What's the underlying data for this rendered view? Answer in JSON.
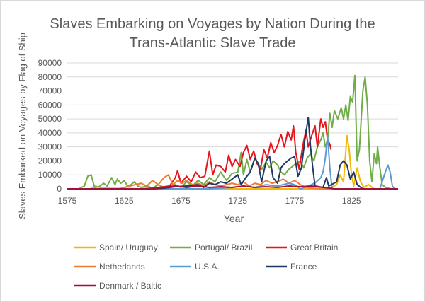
{
  "chart_data": {
    "type": "line",
    "title_line1": "Slaves Embarking on Voyages by Nation During the",
    "title_line2": "Trans-Atlantic Slave Trade",
    "xlabel": "Year",
    "ylabel": "Slaves Embarked on Voyages by Flag of Ship",
    "xlim": [
      1575,
      1866
    ],
    "ylim": [
      0,
      90000
    ],
    "x_ticks": [
      1575,
      1625,
      1675,
      1725,
      1775,
      1825
    ],
    "y_ticks": [
      0,
      10000,
      20000,
      30000,
      40000,
      50000,
      60000,
      70000,
      80000,
      90000
    ],
    "grid": "horizontal",
    "legend_position": "bottom",
    "series": [
      {
        "name": "Spain/ Uruguay",
        "color": "#F2B705",
        "points": [
          [
            1575,
            0
          ],
          [
            1595,
            0
          ],
          [
            1600,
            2000
          ],
          [
            1605,
            500
          ],
          [
            1640,
            0
          ],
          [
            1700,
            0
          ],
          [
            1760,
            0
          ],
          [
            1790,
            0
          ],
          [
            1805,
            0
          ],
          [
            1812,
            3000
          ],
          [
            1815,
            10000
          ],
          [
            1818,
            5000
          ],
          [
            1821,
            38000
          ],
          [
            1823,
            28000
          ],
          [
            1825,
            10000
          ],
          [
            1827,
            2000
          ],
          [
            1830,
            15000
          ],
          [
            1833,
            5000
          ],
          [
            1836,
            1000
          ],
          [
            1840,
            3000
          ],
          [
            1845,
            0
          ],
          [
            1860,
            0
          ],
          [
            1866,
            0
          ]
        ]
      },
      {
        "name": "Portugal/ Brazil",
        "color": "#70AD47",
        "points": [
          [
            1575,
            0
          ],
          [
            1585,
            0
          ],
          [
            1590,
            2000
          ],
          [
            1593,
            9000
          ],
          [
            1596,
            10000
          ],
          [
            1599,
            1000
          ],
          [
            1603,
            1500
          ],
          [
            1607,
            4000
          ],
          [
            1610,
            2000
          ],
          [
            1614,
            8000
          ],
          [
            1617,
            3000
          ],
          [
            1619,
            7000
          ],
          [
            1622,
            4000
          ],
          [
            1625,
            6000
          ],
          [
            1628,
            2000
          ],
          [
            1631,
            3000
          ],
          [
            1634,
            5000
          ],
          [
            1637,
            2000
          ],
          [
            1640,
            1000
          ],
          [
            1645,
            2000
          ],
          [
            1650,
            500
          ],
          [
            1655,
            3000
          ],
          [
            1660,
            1000
          ],
          [
            1665,
            2000
          ],
          [
            1670,
            3000
          ],
          [
            1675,
            1000
          ],
          [
            1680,
            5000
          ],
          [
            1685,
            2000
          ],
          [
            1690,
            6000
          ],
          [
            1695,
            3000
          ],
          [
            1700,
            8000
          ],
          [
            1705,
            5000
          ],
          [
            1710,
            12000
          ],
          [
            1715,
            6000
          ],
          [
            1720,
            11000
          ],
          [
            1725,
            12000
          ],
          [
            1728,
            26000
          ],
          [
            1730,
            10000
          ],
          [
            1733,
            21000
          ],
          [
            1736,
            12000
          ],
          [
            1740,
            22000
          ],
          [
            1743,
            18000
          ],
          [
            1746,
            14000
          ],
          [
            1750,
            19000
          ],
          [
            1753,
            15000
          ],
          [
            1756,
            20000
          ],
          [
            1760,
            17000
          ],
          [
            1763,
            12000
          ],
          [
            1766,
            10000
          ],
          [
            1770,
            14000
          ],
          [
            1773,
            16000
          ],
          [
            1776,
            18000
          ],
          [
            1780,
            20000
          ],
          [
            1783,
            15000
          ],
          [
            1786,
            22000
          ],
          [
            1789,
            25000
          ],
          [
            1792,
            20000
          ],
          [
            1795,
            30000
          ],
          [
            1798,
            35000
          ],
          [
            1800,
            40000
          ],
          [
            1802,
            30000
          ],
          [
            1804,
            35000
          ],
          [
            1806,
            54000
          ],
          [
            1808,
            44000
          ],
          [
            1810,
            56000
          ],
          [
            1813,
            50000
          ],
          [
            1816,
            58000
          ],
          [
            1818,
            50000
          ],
          [
            1820,
            60000
          ],
          [
            1822,
            49000
          ],
          [
            1824,
            66000
          ],
          [
            1826,
            62000
          ],
          [
            1828,
            81000
          ],
          [
            1830,
            20000
          ],
          [
            1832,
            28000
          ],
          [
            1835,
            70000
          ],
          [
            1837,
            80000
          ],
          [
            1839,
            60000
          ],
          [
            1841,
            20000
          ],
          [
            1843,
            5000
          ],
          [
            1845,
            25000
          ],
          [
            1847,
            18000
          ],
          [
            1848,
            30000
          ],
          [
            1850,
            15000
          ],
          [
            1852,
            3000
          ],
          [
            1855,
            1000
          ],
          [
            1860,
            0
          ],
          [
            1866,
            0
          ]
        ]
      },
      {
        "name": "Great Britain",
        "color": "#E8141B",
        "points": [
          [
            1575,
            0
          ],
          [
            1640,
            0
          ],
          [
            1650,
            500
          ],
          [
            1660,
            1500
          ],
          [
            1665,
            2000
          ],
          [
            1670,
            8000
          ],
          [
            1672,
            13000
          ],
          [
            1675,
            4000
          ],
          [
            1680,
            9000
          ],
          [
            1684,
            5000
          ],
          [
            1688,
            12000
          ],
          [
            1692,
            8000
          ],
          [
            1696,
            9000
          ],
          [
            1700,
            27000
          ],
          [
            1703,
            10000
          ],
          [
            1706,
            17000
          ],
          [
            1710,
            16000
          ],
          [
            1714,
            12000
          ],
          [
            1717,
            24000
          ],
          [
            1720,
            16000
          ],
          [
            1723,
            21000
          ],
          [
            1727,
            16000
          ],
          [
            1730,
            26000
          ],
          [
            1733,
            31000
          ],
          [
            1736,
            21000
          ],
          [
            1739,
            27000
          ],
          [
            1742,
            18000
          ],
          [
            1745,
            14000
          ],
          [
            1748,
            28000
          ],
          [
            1751,
            22000
          ],
          [
            1754,
            33000
          ],
          [
            1757,
            26000
          ],
          [
            1760,
            31000
          ],
          [
            1763,
            39000
          ],
          [
            1766,
            30000
          ],
          [
            1769,
            41000
          ],
          [
            1772,
            35000
          ],
          [
            1774,
            45000
          ],
          [
            1776,
            26000
          ],
          [
            1779,
            14000
          ],
          [
            1782,
            30000
          ],
          [
            1785,
            42000
          ],
          [
            1787,
            30000
          ],
          [
            1790,
            38000
          ],
          [
            1793,
            45000
          ],
          [
            1795,
            30000
          ],
          [
            1798,
            50000
          ],
          [
            1800,
            44000
          ],
          [
            1802,
            48000
          ],
          [
            1804,
            35000
          ],
          [
            1806,
            32000
          ],
          [
            1807,
            28000
          ]
        ]
      },
      {
        "name": "Netherlands",
        "color": "#ED7D31",
        "points": [
          [
            1575,
            0
          ],
          [
            1620,
            0
          ],
          [
            1630,
            2000
          ],
          [
            1640,
            4000
          ],
          [
            1645,
            2000
          ],
          [
            1650,
            6000
          ],
          [
            1655,
            3000
          ],
          [
            1660,
            8000
          ],
          [
            1664,
            10000
          ],
          [
            1668,
            3000
          ],
          [
            1672,
            6000
          ],
          [
            1676,
            4000
          ],
          [
            1680,
            6000
          ],
          [
            1685,
            3000
          ],
          [
            1690,
            4000
          ],
          [
            1695,
            2000
          ],
          [
            1700,
            5000
          ],
          [
            1705,
            3000
          ],
          [
            1710,
            2000
          ],
          [
            1720,
            4000
          ],
          [
            1725,
            3000
          ],
          [
            1730,
            5000
          ],
          [
            1735,
            2000
          ],
          [
            1740,
            4000
          ],
          [
            1745,
            3000
          ],
          [
            1750,
            6000
          ],
          [
            1755,
            4000
          ],
          [
            1760,
            5000
          ],
          [
            1765,
            7000
          ],
          [
            1770,
            4000
          ],
          [
            1775,
            6000
          ],
          [
            1780,
            3000
          ],
          [
            1785,
            1000
          ],
          [
            1790,
            500
          ],
          [
            1800,
            0
          ],
          [
            1866,
            0
          ]
        ]
      },
      {
        "name": "U.S.A.",
        "color": "#5B9BD5",
        "points": [
          [
            1575,
            0
          ],
          [
            1700,
            0
          ],
          [
            1720,
            1000
          ],
          [
            1730,
            2000
          ],
          [
            1740,
            1000
          ],
          [
            1750,
            3000
          ],
          [
            1760,
            2000
          ],
          [
            1770,
            4000
          ],
          [
            1775,
            3000
          ],
          [
            1780,
            0
          ],
          [
            1784,
            1000
          ],
          [
            1790,
            3000
          ],
          [
            1794,
            5000
          ],
          [
            1798,
            8000
          ],
          [
            1800,
            12000
          ],
          [
            1802,
            22000
          ],
          [
            1804,
            38000
          ],
          [
            1806,
            15000
          ],
          [
            1808,
            0
          ],
          [
            1830,
            0
          ],
          [
            1840,
            0
          ],
          [
            1850,
            0
          ],
          [
            1854,
            10000
          ],
          [
            1857,
            17000
          ],
          [
            1859,
            12000
          ],
          [
            1861,
            2000
          ],
          [
            1863,
            0
          ],
          [
            1866,
            0
          ]
        ]
      },
      {
        "name": "France",
        "color": "#203864",
        "points": [
          [
            1575,
            0
          ],
          [
            1650,
            0
          ],
          [
            1660,
            500
          ],
          [
            1670,
            1500
          ],
          [
            1680,
            2000
          ],
          [
            1690,
            3000
          ],
          [
            1695,
            1000
          ],
          [
            1700,
            4000
          ],
          [
            1705,
            3000
          ],
          [
            1710,
            5000
          ],
          [
            1715,
            4000
          ],
          [
            1720,
            7000
          ],
          [
            1725,
            10000
          ],
          [
            1728,
            3000
          ],
          [
            1732,
            8000
          ],
          [
            1736,
            12000
          ],
          [
            1740,
            22000
          ],
          [
            1743,
            18000
          ],
          [
            1746,
            5000
          ],
          [
            1750,
            20000
          ],
          [
            1753,
            23000
          ],
          [
            1756,
            8000
          ],
          [
            1760,
            4000
          ],
          [
            1763,
            15000
          ],
          [
            1766,
            18000
          ],
          [
            1769,
            20000
          ],
          [
            1772,
            22000
          ],
          [
            1775,
            23000
          ],
          [
            1778,
            9000
          ],
          [
            1781,
            15000
          ],
          [
            1784,
            35000
          ],
          [
            1787,
            51000
          ],
          [
            1789,
            30000
          ],
          [
            1791,
            15000
          ],
          [
            1793,
            2000
          ],
          [
            1800,
            1000
          ],
          [
            1803,
            8000
          ],
          [
            1805,
            2000
          ],
          [
            1812,
            5000
          ],
          [
            1815,
            17000
          ],
          [
            1818,
            20000
          ],
          [
            1821,
            17000
          ],
          [
            1824,
            7000
          ],
          [
            1827,
            12000
          ],
          [
            1830,
            3000
          ],
          [
            1835,
            0
          ],
          [
            1866,
            0
          ]
        ]
      },
      {
        "name": "Denmark / Baltic",
        "color": "#A50F3C",
        "points": [
          [
            1575,
            0
          ],
          [
            1650,
            0
          ],
          [
            1660,
            1000
          ],
          [
            1670,
            2000
          ],
          [
            1680,
            1000
          ],
          [
            1690,
            2000
          ],
          [
            1700,
            1000
          ],
          [
            1710,
            1500
          ],
          [
            1720,
            1000
          ],
          [
            1730,
            2000
          ],
          [
            1740,
            1000
          ],
          [
            1750,
            1500
          ],
          [
            1760,
            1000
          ],
          [
            1770,
            2000
          ],
          [
            1780,
            1500
          ],
          [
            1790,
            2000
          ],
          [
            1800,
            1000
          ],
          [
            1806,
            500
          ],
          [
            1810,
            0
          ],
          [
            1866,
            0
          ]
        ]
      }
    ]
  }
}
